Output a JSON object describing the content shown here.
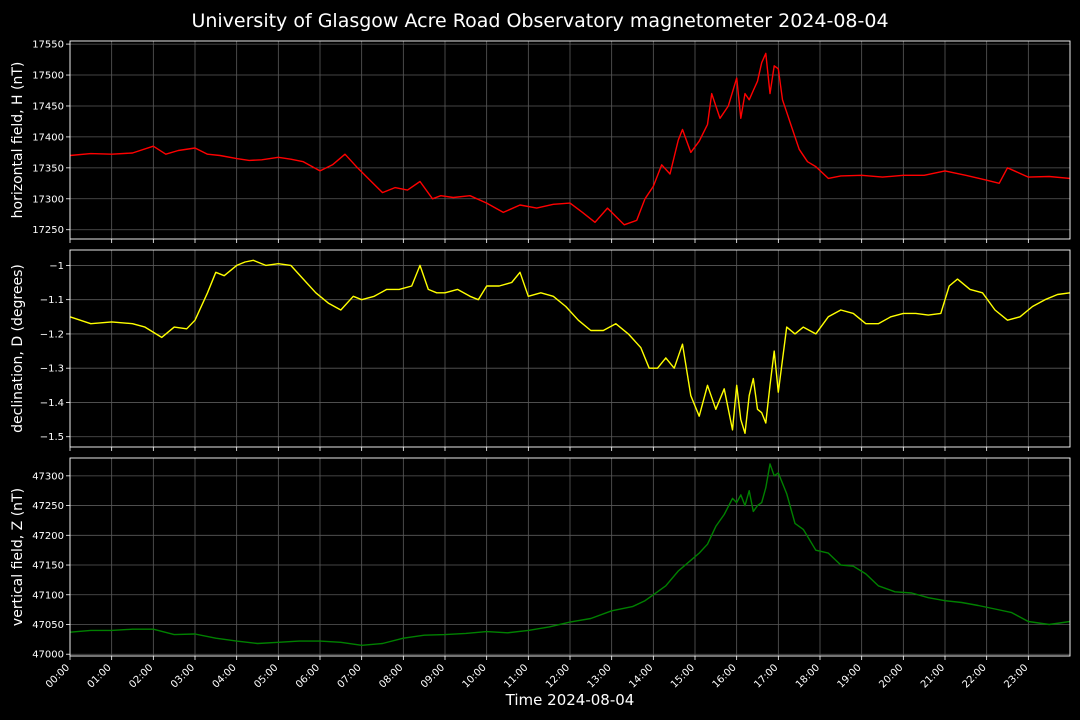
{
  "title": "University of Glasgow Acre Road Observatory magnetometer 2024-08-04",
  "xlabel": "Time 2024-08-04",
  "colors": {
    "background": "#000000",
    "grid": "#5a5a5a",
    "axes": "#ffffff",
    "H": "#ff0000",
    "D": "#ffff00",
    "Z": "#008000"
  },
  "chart_data": [
    {
      "type": "line",
      "ylabel": "horizontal field, H (nT)",
      "ylim": [
        17235,
        17555
      ],
      "yticks": [
        17250,
        17300,
        17350,
        17400,
        17450,
        17500,
        17550
      ],
      "xlim": [
        0,
        24
      ],
      "grid": true,
      "series": [
        {
          "color": "#ff0000",
          "x": [
            0,
            0.5,
            1,
            1.5,
            2,
            2.3,
            2.6,
            3,
            3.3,
            3.6,
            4,
            4.3,
            4.6,
            5,
            5.3,
            5.6,
            6,
            6.3,
            6.6,
            6.9,
            7.2,
            7.5,
            7.8,
            8.1,
            8.4,
            8.7,
            8.9,
            9.2,
            9.6,
            10,
            10.4,
            10.8,
            11.2,
            11.6,
            12,
            12.3,
            12.6,
            12.9,
            13.3,
            13.6,
            13.8,
            14.0,
            14.2,
            14.4,
            14.6,
            14.7,
            14.9,
            15.1,
            15.3,
            15.4,
            15.6,
            15.8,
            16.0,
            16.1,
            16.2,
            16.3,
            16.4,
            16.5,
            16.6,
            16.7,
            16.8,
            16.9,
            17.0,
            17.1,
            17.2,
            17.3,
            17.5,
            17.7,
            17.9,
            18.2,
            18.5,
            19,
            19.5,
            20,
            20.5,
            21,
            21.5,
            22,
            22.3,
            22.5,
            23,
            23.5,
            24
          ],
          "y": [
            17370,
            17373,
            17372,
            17374,
            17385,
            17372,
            17378,
            17382,
            17372,
            17370,
            17365,
            17362,
            17363,
            17367,
            17364,
            17360,
            17345,
            17355,
            17372,
            17350,
            17330,
            17310,
            17318,
            17314,
            17328,
            17300,
            17305,
            17302,
            17305,
            17293,
            17278,
            17290,
            17285,
            17291,
            17293,
            17278,
            17262,
            17285,
            17258,
            17265,
            17300,
            17320,
            17355,
            17340,
            17395,
            17412,
            17375,
            17393,
            17420,
            17470,
            17430,
            17450,
            17495,
            17430,
            17470,
            17460,
            17475,
            17490,
            17520,
            17535,
            17470,
            17515,
            17510,
            17460,
            17440,
            17420,
            17380,
            17360,
            17352,
            17333,
            17337,
            17338,
            17335,
            17338,
            17338,
            17345,
            17338,
            17330,
            17325,
            17350,
            17335,
            17336,
            17333
          ]
        }
      ]
    },
    {
      "type": "line",
      "ylabel": "declination, D (degrees)",
      "ylim": [
        -1.53,
        -0.955
      ],
      "yticks": [
        -1.5,
        -1.4,
        -1.3,
        -1.2,
        -1.1,
        -1.0
      ],
      "xlim": [
        0,
        24
      ],
      "grid": true,
      "series": [
        {
          "color": "#ffff00",
          "x": [
            0,
            0.5,
            1,
            1.5,
            1.8,
            2.2,
            2.5,
            2.8,
            3.0,
            3.3,
            3.5,
            3.7,
            4.0,
            4.2,
            4.4,
            4.7,
            5.0,
            5.3,
            5.6,
            5.9,
            6.2,
            6.5,
            6.8,
            7.0,
            7.3,
            7.6,
            7.9,
            8.2,
            8.4,
            8.6,
            8.8,
            9.0,
            9.3,
            9.6,
            9.8,
            10.0,
            10.3,
            10.6,
            10.8,
            11.0,
            11.3,
            11.6,
            11.9,
            12.2,
            12.5,
            12.8,
            13.1,
            13.4,
            13.7,
            13.9,
            14.1,
            14.3,
            14.5,
            14.7,
            14.9,
            15.1,
            15.3,
            15.5,
            15.7,
            15.9,
            16.0,
            16.1,
            16.2,
            16.3,
            16.4,
            16.5,
            16.6,
            16.7,
            16.8,
            16.9,
            17.0,
            17.2,
            17.4,
            17.6,
            17.9,
            18.2,
            18.5,
            18.8,
            19.1,
            19.4,
            19.7,
            20.0,
            20.3,
            20.6,
            20.9,
            21.1,
            21.3,
            21.6,
            21.9,
            22.2,
            22.5,
            22.8,
            23.1,
            23.4,
            23.7,
            24
          ],
          "y": [
            -1.15,
            -1.17,
            -1.165,
            -1.17,
            -1.18,
            -1.21,
            -1.18,
            -1.185,
            -1.16,
            -1.08,
            -1.02,
            -1.03,
            -1.0,
            -0.99,
            -0.985,
            -1.0,
            -0.995,
            -1.0,
            -1.04,
            -1.08,
            -1.11,
            -1.13,
            -1.09,
            -1.1,
            -1.09,
            -1.07,
            -1.07,
            -1.06,
            -1.0,
            -1.07,
            -1.08,
            -1.08,
            -1.07,
            -1.09,
            -1.1,
            -1.06,
            -1.06,
            -1.05,
            -1.02,
            -1.09,
            -1.08,
            -1.09,
            -1.12,
            -1.16,
            -1.19,
            -1.19,
            -1.17,
            -1.2,
            -1.24,
            -1.3,
            -1.3,
            -1.27,
            -1.3,
            -1.23,
            -1.38,
            -1.44,
            -1.35,
            -1.42,
            -1.36,
            -1.48,
            -1.35,
            -1.45,
            -1.49,
            -1.38,
            -1.33,
            -1.42,
            -1.43,
            -1.46,
            -1.35,
            -1.25,
            -1.37,
            -1.18,
            -1.2,
            -1.18,
            -1.2,
            -1.15,
            -1.13,
            -1.14,
            -1.17,
            -1.17,
            -1.15,
            -1.14,
            -1.14,
            -1.145,
            -1.14,
            -1.06,
            -1.04,
            -1.07,
            -1.08,
            -1.13,
            -1.16,
            -1.15,
            -1.12,
            -1.1,
            -1.085,
            -1.08
          ]
        }
      ]
    },
    {
      "type": "line",
      "ylabel": "vertical field, Z (nT)",
      "ylim": [
        46997,
        47330
      ],
      "yticks": [
        47000,
        47050,
        47100,
        47150,
        47200,
        47250,
        47300
      ],
      "xlim": [
        0,
        24
      ],
      "grid": true,
      "xticks": [
        "00:00",
        "01:00",
        "02:00",
        "03:00",
        "04:00",
        "05:00",
        "06:00",
        "07:00",
        "08:00",
        "09:00",
        "10:00",
        "11:00",
        "12:00",
        "13:00",
        "14:00",
        "15:00",
        "16:00",
        "17:00",
        "18:00",
        "19:00",
        "20:00",
        "21:00",
        "22:00",
        "23:00"
      ],
      "series": [
        {
          "color": "#008000",
          "x": [
            0,
            0.5,
            1,
            1.5,
            2,
            2.5,
            3,
            3.5,
            4,
            4.5,
            5,
            5.5,
            6,
            6.5,
            7,
            7.5,
            8,
            8.5,
            9,
            9.5,
            10,
            10.5,
            11,
            11.5,
            12,
            12.5,
            13,
            13.5,
            13.8,
            14,
            14.3,
            14.6,
            14.9,
            15.1,
            15.3,
            15.5,
            15.7,
            15.9,
            16.0,
            16.1,
            16.2,
            16.3,
            16.4,
            16.5,
            16.6,
            16.7,
            16.8,
            16.9,
            17.0,
            17.2,
            17.4,
            17.6,
            17.9,
            18.2,
            18.5,
            18.8,
            19.1,
            19.4,
            19.8,
            20.2,
            20.6,
            21.0,
            21.4,
            21.8,
            22.2,
            22.6,
            23.0,
            23.5,
            24
          ],
          "y": [
            47037,
            47040,
            47040,
            47042,
            47042,
            47033,
            47034,
            47027,
            47022,
            47018,
            47020,
            47022,
            47022,
            47020,
            47015,
            47018,
            47027,
            47032,
            47033,
            47035,
            47038,
            47036,
            47040,
            47046,
            47054,
            47060,
            47073,
            47080,
            47090,
            47100,
            47115,
            47140,
            47158,
            47170,
            47185,
            47215,
            47235,
            47262,
            47255,
            47268,
            47250,
            47275,
            47240,
            47250,
            47255,
            47280,
            47320,
            47300,
            47305,
            47270,
            47220,
            47210,
            47175,
            47170,
            47150,
            47148,
            47135,
            47115,
            47105,
            47103,
            47095,
            47090,
            47087,
            47082,
            47076,
            47070,
            47055,
            47050,
            47055
          ]
        }
      ]
    }
  ]
}
